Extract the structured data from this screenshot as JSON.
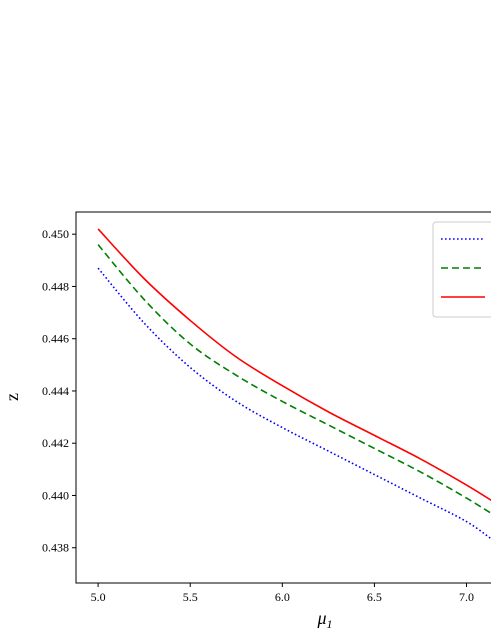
{
  "chart_data": {
    "type": "line",
    "title": "",
    "xlabel": "μ1",
    "ylabel": "z",
    "xlim": [
      4.88,
      7.16
    ],
    "ylim": [
      0.43665,
      0.45085
    ],
    "xticks": [
      5.0,
      5.5,
      6.0,
      6.5,
      7.0
    ],
    "xtick_labels": [
      "5.0",
      "5.5",
      "6.0",
      "6.5",
      "7.0"
    ],
    "yticks": [
      0.438,
      0.44,
      0.442,
      0.444,
      0.446,
      0.448,
      0.45
    ],
    "ytick_labels": [
      "0.438",
      "0.440",
      "0.442",
      "0.444",
      "0.446",
      "0.448",
      "0.450"
    ],
    "grid": false,
    "legend": {
      "placement": "top-right",
      "entries": [
        "",
        "",
        ""
      ]
    },
    "series": [
      {
        "color": "#0000ff",
        "style": "dotted",
        "x": [
          5.0,
          5.25,
          5.5,
          5.75,
          6.0,
          6.25,
          6.5,
          6.75,
          7.0,
          7.16
        ],
        "y": [
          0.4487,
          0.4466,
          0.4449,
          0.4436,
          0.4426,
          0.4417,
          0.4408,
          0.4399,
          0.439,
          0.4382
        ]
      },
      {
        "color": "#008000",
        "style": "dashed",
        "x": [
          5.0,
          5.25,
          5.5,
          5.75,
          6.0,
          6.25,
          6.5,
          6.75,
          7.0,
          7.16
        ],
        "y": [
          0.4496,
          0.4475,
          0.4458,
          0.4446,
          0.4436,
          0.4427,
          0.4418,
          0.4409,
          0.4399,
          0.4392
        ]
      },
      {
        "color": "#ff0000",
        "style": "solid",
        "x": [
          5.0,
          5.25,
          5.5,
          5.75,
          6.0,
          6.25,
          6.5,
          6.75,
          7.0,
          7.16
        ],
        "y": [
          0.4502,
          0.4483,
          0.4467,
          0.4453,
          0.4442,
          0.4432,
          0.4423,
          0.4414,
          0.4404,
          0.4397
        ]
      }
    ]
  }
}
